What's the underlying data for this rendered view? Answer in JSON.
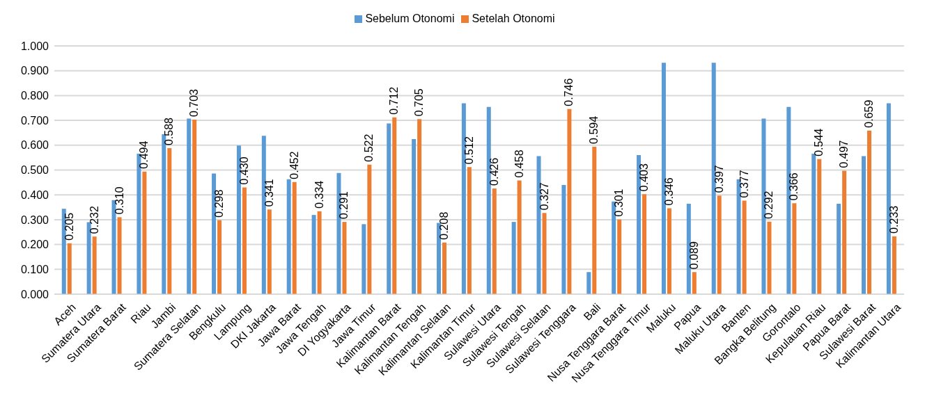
{
  "chart_data": {
    "type": "bar",
    "categories": [
      "Aceh",
      "Sumatera Utara",
      "Sumatera Barat",
      "Riau",
      "Jambi",
      "Sumatera Selatan",
      "Bengkulu",
      "Lampung",
      "DKI Jakarta",
      "Jawa Barat",
      "Jawa Tengah",
      "DI Yogyakarta",
      "Jawa Timur",
      "Kalimantan Barat",
      "Kalimantan Tengah",
      "Kalimantan Selatan",
      "Kalimantan Timur",
      "Sulawesi Utara",
      "Sulawesi Tengah",
      "Sulawesi Selatan",
      "Sulawesi Tenggara",
      "Bali",
      "Nusa Tenggara Barat",
      "Nusa Tenggara Timur",
      "Maluku",
      "Papua",
      "Maluku Utara",
      "Banten",
      "Bangka Belitung",
      "Gorontalo",
      "Kepulauan Riau",
      "Papua Barat",
      "Sulawesi Barat",
      "Kalimantan Utara"
    ],
    "series": [
      {
        "name": "Sebelum Otonomi",
        "color": "#5b9bd5",
        "values": [
          0.344,
          0.29,
          0.379,
          0.566,
          0.644,
          0.707,
          0.486,
          0.599,
          0.638,
          0.463,
          0.319,
          0.488,
          0.282,
          0.688,
          0.625,
          0.287,
          0.769,
          0.754,
          0.291,
          0.556,
          0.44,
          0.089,
          0.373,
          0.56,
          0.932,
          0.364,
          0.932,
          0.463,
          0.707,
          0.754,
          0.566,
          0.364,
          0.556,
          0.769
        ]
      },
      {
        "name": "Setelah  Otonomi",
        "color": "#ed7d31",
        "values": [
          0.205,
          0.232,
          0.31,
          0.494,
          0.588,
          0.703,
          0.298,
          0.43,
          0.341,
          0.452,
          0.334,
          0.291,
          0.522,
          0.712,
          0.705,
          0.208,
          0.512,
          0.426,
          0.458,
          0.327,
          0.746,
          0.594,
          0.301,
          0.403,
          0.346,
          0.089,
          0.397,
          0.377,
          0.292,
          0.366,
          0.544,
          0.497,
          0.659,
          0.233
        ],
        "value_labels": [
          "0.205",
          "0.232",
          "0.310",
          "0.494",
          "0.588",
          "0.703",
          "0.298",
          "0.430",
          "0.341",
          "0.452",
          "0.334",
          "0.291",
          "0.522",
          "0.712",
          "0.705",
          "0.208",
          "0.512",
          "0.426",
          "0.458",
          "0.327",
          "0.746",
          "0.594",
          "0.301",
          "0.403",
          "0.346",
          "0.089",
          "0.397",
          "0.377",
          "0.292",
          "0.366",
          "0.544",
          "0.497",
          "0.659",
          "0.233"
        ]
      }
    ],
    "ylim": [
      0,
      1
    ],
    "yticks": [
      {
        "value": 0,
        "label": "0.000"
      },
      {
        "value": 0.1,
        "label": "0.100"
      },
      {
        "value": 0.2,
        "label": "0.200"
      },
      {
        "value": 0.3,
        "label": "0.300"
      },
      {
        "value": 0.4,
        "label": "0.400"
      },
      {
        "value": 0.5,
        "label": "0.500"
      },
      {
        "value": 0.6,
        "label": "0.600"
      },
      {
        "value": 0.7,
        "label": "0.700"
      },
      {
        "value": 0.8,
        "label": "0.800"
      },
      {
        "value": 0.9,
        "label": "0.900"
      },
      {
        "value": 1,
        "label": "1.000"
      }
    ],
    "grid": "y",
    "legend": "top"
  }
}
